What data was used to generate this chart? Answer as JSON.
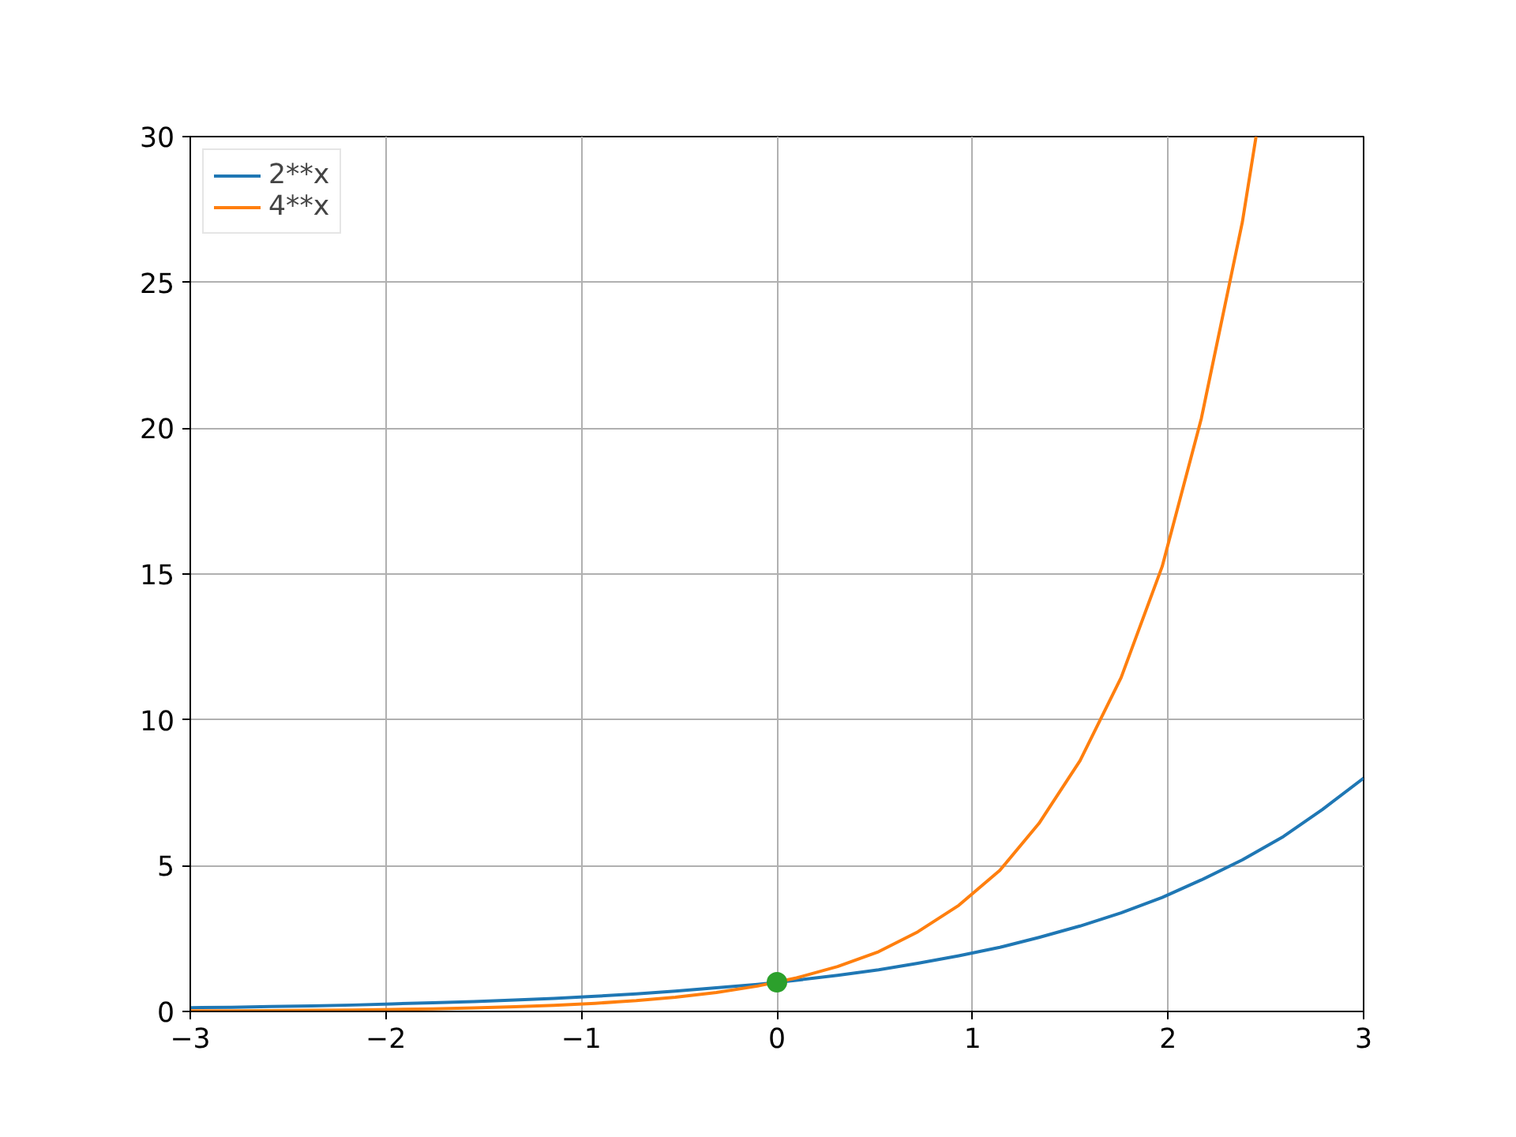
{
  "chart_data": {
    "type": "line",
    "xlim": [
      -3,
      3
    ],
    "ylim": [
      0,
      30
    ],
    "xticks": [
      {
        "value": -3,
        "label": "−3"
      },
      {
        "value": -2,
        "label": "−2"
      },
      {
        "value": -1,
        "label": "−1"
      },
      0,
      1,
      2,
      3
    ],
    "yticks": [
      0,
      5,
      10,
      15,
      20,
      25,
      30
    ],
    "x": [
      -3,
      -2.79,
      -2.59,
      -2.38,
      -2.17,
      -1.97,
      -1.76,
      -1.55,
      -1.34,
      -1.14,
      -0.93,
      -0.72,
      -0.52,
      -0.31,
      -0.1,
      0.1,
      0.31,
      0.52,
      0.72,
      0.93,
      1.14,
      1.34,
      1.55,
      1.76,
      1.97,
      2.17,
      2.38,
      2.59,
      2.79,
      3
    ],
    "series": [
      {
        "name": "2**x",
        "color": "#1f77b4",
        "values": [
          0.13,
          0.14,
          0.17,
          0.19,
          0.22,
          0.26,
          0.3,
          0.34,
          0.39,
          0.45,
          0.52,
          0.6,
          0.7,
          0.81,
          0.93,
          1.07,
          1.24,
          1.43,
          1.65,
          1.91,
          2.2,
          2.54,
          2.93,
          3.38,
          3.91,
          4.51,
          5.2,
          6.0,
          6.93,
          8.0
        ]
      },
      {
        "name": "4**x",
        "color": "#ff7f0e",
        "x": [
          -3,
          -2.79,
          -2.59,
          -2.38,
          -2.17,
          -1.97,
          -1.76,
          -1.55,
          -1.34,
          -1.14,
          -0.93,
          -0.72,
          -0.52,
          -0.31,
          -0.1,
          0.1,
          0.31,
          0.52,
          0.72,
          0.93,
          1.14,
          1.34,
          1.55,
          1.76,
          1.97,
          2.17,
          2.38,
          2.45
        ],
        "values": [
          0.02,
          0.02,
          0.03,
          0.04,
          0.05,
          0.07,
          0.09,
          0.12,
          0.16,
          0.21,
          0.28,
          0.37,
          0.49,
          0.65,
          0.87,
          1.15,
          1.54,
          2.05,
          2.73,
          3.64,
          4.84,
          6.45,
          8.6,
          11.45,
          15.26,
          20.33,
          27.07,
          30
        ]
      },
      {
        "type": "scatter",
        "color": "#2ca02c",
        "x": [
          0
        ],
        "values": [
          1
        ],
        "marker": "circle"
      }
    ],
    "grid": true,
    "legend": "top left"
  }
}
